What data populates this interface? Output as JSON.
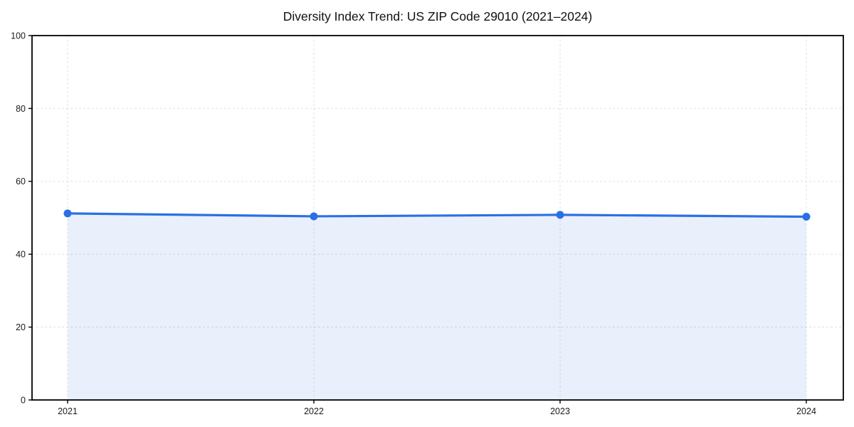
{
  "page": {
    "background": "#ffffff"
  },
  "chart_data": {
    "type": "area",
    "title": "Diversity Index Trend: US ZIP Code 29010 (2021–2024)",
    "x": [
      2021,
      2022,
      2023,
      2024
    ],
    "xtick_labels": [
      "2021",
      "2022",
      "2023",
      "2024"
    ],
    "series": [
      {
        "name": "Diversity Index",
        "values": [
          51.2,
          50.4,
          50.8,
          50.3
        ]
      }
    ],
    "xlabel": "",
    "ylabel": "",
    "ylim": [
      0,
      100
    ],
    "yticks": [
      0,
      20,
      40,
      60,
      80,
      100
    ],
    "grid": {
      "visible": true,
      "style": "dashed",
      "color": "#e0e0e0"
    },
    "legend": "none",
    "colors": {
      "line": "#2a70e4",
      "marker": "#2a70e4",
      "fill": "#2a70e4",
      "fill_opacity": 0.1,
      "axis": "#000000",
      "grid": "#e0e0e0",
      "text": "#1a1a1a",
      "background": "#ffffff"
    }
  }
}
